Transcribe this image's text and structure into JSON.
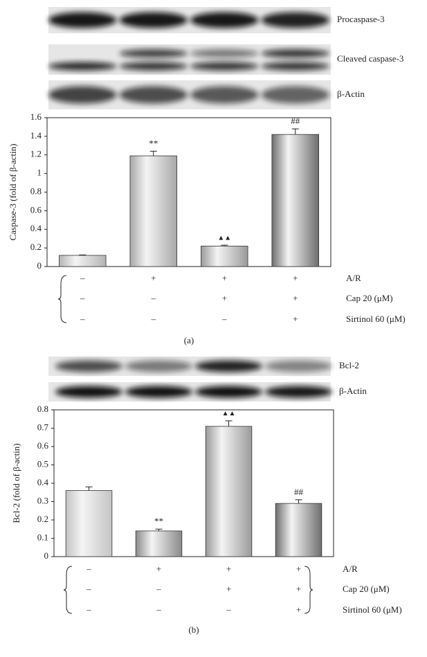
{
  "chart_data": [
    {
      "type": "bar",
      "panel_label": "(a)",
      "blots": [
        {
          "label": "Procaspase-3"
        },
        {
          "label": "Cleaved caspase-3"
        },
        {
          "label": "β-Actin"
        }
      ],
      "ylabel": "Caspase-3 (fold of β-actin)",
      "values": [
        0.12,
        1.19,
        0.22,
        1.42
      ],
      "errors": [
        0.005,
        0.05,
        0.01,
        0.06
      ],
      "annotations": [
        null,
        "**",
        "▲▲",
        "##"
      ],
      "bar_colors": [
        "#b4b4b4",
        "#a8a8a8",
        "#9a9a9a",
        "#6e6e6e"
      ],
      "ylim": [
        0,
        1.6
      ],
      "yticks": [
        0,
        0.2,
        0.4,
        0.6,
        0.8,
        1,
        1.2,
        1.4,
        1.6
      ],
      "treatments": [
        {
          "label": "A/R",
          "signs": [
            "–",
            "+",
            "+",
            "+"
          ]
        },
        {
          "label": "Cap 20 (μM)",
          "signs": [
            "–",
            "–",
            "+",
            "+"
          ]
        },
        {
          "label": "Sirtinol 60 (μM)",
          "signs": [
            "–",
            "–",
            "–",
            "+"
          ]
        }
      ]
    },
    {
      "type": "bar",
      "panel_label": "(b)",
      "blots": [
        {
          "label": "Bcl-2"
        },
        {
          "label": "β-Actin"
        }
      ],
      "ylabel": "Bcl-2 (fold of β-actin)",
      "values": [
        0.36,
        0.14,
        0.71,
        0.29
      ],
      "errors": [
        0.02,
        0.01,
        0.03,
        0.02
      ],
      "annotations": [
        null,
        "**",
        "▲▲",
        "##"
      ],
      "bar_colors": [
        "#c4c4c4",
        "#8a8a8a",
        "#9a9a9a",
        "#6e6e6e"
      ],
      "ylim": [
        0,
        0.8
      ],
      "yticks": [
        0,
        0.1,
        0.2,
        0.3,
        0.4,
        0.5,
        0.6,
        0.7,
        0.8
      ],
      "treatments": [
        {
          "label": "A/R",
          "signs": [
            "–",
            "+",
            "+",
            "+"
          ]
        },
        {
          "label": "Cap 20 (μM)",
          "signs": [
            "–",
            "–",
            "+",
            "+"
          ]
        },
        {
          "label": "Sirtinol 60 (μM)",
          "signs": [
            "–",
            "–",
            "–",
            "+"
          ]
        }
      ]
    }
  ]
}
